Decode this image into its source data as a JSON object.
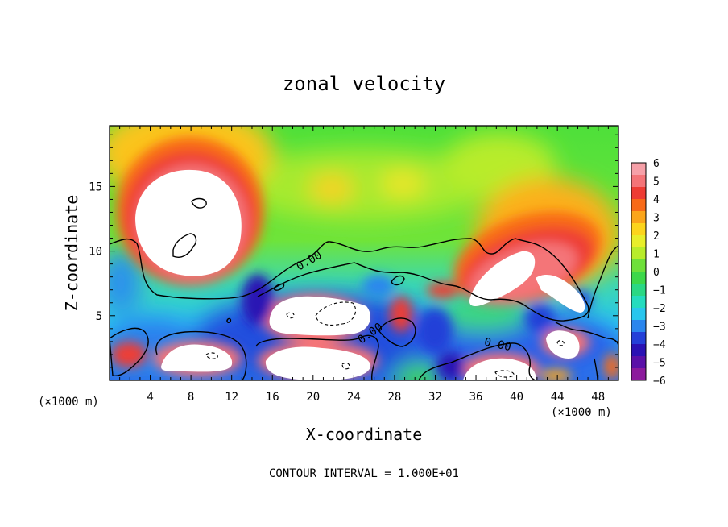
{
  "chart_data": {
    "type": "heatmap",
    "title": "zonal velocity",
    "xlabel": "X-coordinate",
    "ylabel": "Z-coordinate",
    "x_unit_left": "(×1000 m)",
    "x_unit_right": "(×1000 m)",
    "xlim": [
      0,
      50
    ],
    "ylim": [
      0,
      19.7
    ],
    "x_ticks": [
      "4",
      "8",
      "12",
      "16",
      "20",
      "24",
      "28",
      "32",
      "36",
      "40",
      "44",
      "48"
    ],
    "y_ticks": [
      "5",
      "10",
      "15"
    ],
    "colorbar": {
      "ticks": [
        "6",
        "5",
        "4",
        "3",
        "2",
        "1",
        "0",
        "−1",
        "−2",
        "−3",
        "−4",
        "−5",
        "−6"
      ],
      "colors": [
        "#f6a0a8",
        "#f47478",
        "#ee3c34",
        "#f86a18",
        "#fba51a",
        "#fcd41c",
        "#e8ee2a",
        "#b8ec2a",
        "#6ee03a",
        "#3cd84a",
        "#2ad884",
        "#24dcbe",
        "#28c6ee",
        "#2a86ee",
        "#2440d8",
        "#2a12b4",
        "#5a10a8",
        "#8c1a9c"
      ]
    },
    "contour_labels": [
      "0.00",
      "0.00",
      "0.00"
    ],
    "footnote": "CONTOUR INTERVAL = 1.000E+01",
    "features": [
      {
        "kind": "max",
        "x": 10,
        "z": 13.0
      },
      {
        "kind": "max",
        "x": 40,
        "z": 8.3
      },
      {
        "kind": "max",
        "x": 45.6,
        "z": 6.6
      },
      {
        "kind": "max",
        "x": 10,
        "z": 1.7
      },
      {
        "kind": "max",
        "x": 22,
        "z": 1.5
      },
      {
        "kind": "max",
        "x": 21.5,
        "z": 5.0
      },
      {
        "kind": "max",
        "x": 39.5,
        "z": 0.5
      },
      {
        "kind": "max",
        "x": 45,
        "z": 2.8
      }
    ]
  }
}
